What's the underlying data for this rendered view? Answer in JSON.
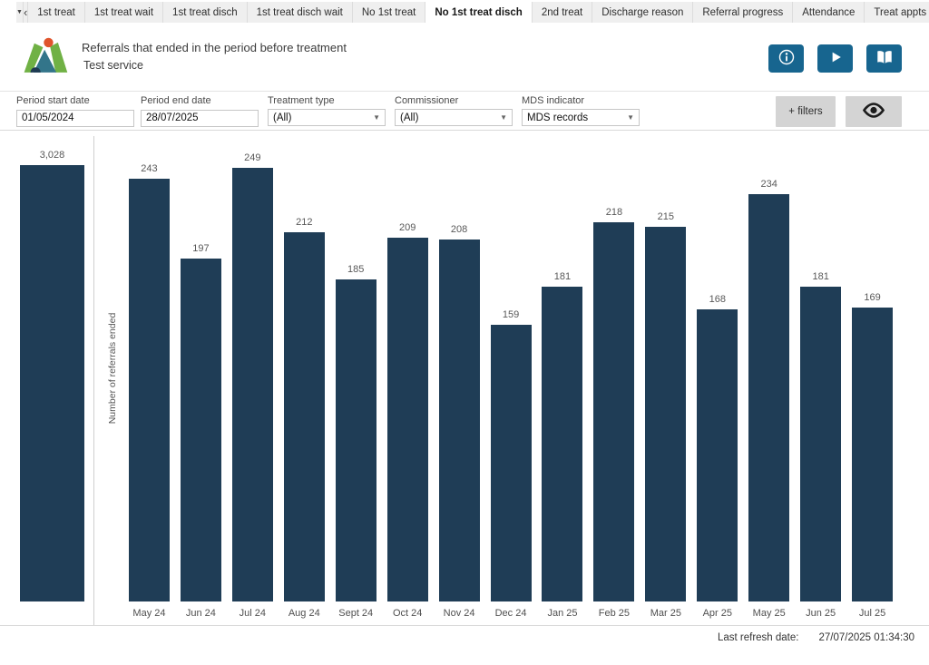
{
  "tab_bar": {
    "dropdown_icon": "▼",
    "back_icon": "‹",
    "forward_icon": "›",
    "tabs": [
      {
        "label": "1st treat",
        "selected": false
      },
      {
        "label": "1st treat wait",
        "selected": false
      },
      {
        "label": "1st treat disch",
        "selected": false
      },
      {
        "label": "1st treat disch wait",
        "selected": false
      },
      {
        "label": "No 1st treat",
        "selected": false
      },
      {
        "label": "No 1st treat disch",
        "selected": true
      },
      {
        "label": "2nd treat",
        "selected": false
      },
      {
        "label": "Discharge reason",
        "selected": false
      },
      {
        "label": "Referral progress",
        "selected": false
      },
      {
        "label": "Attendance",
        "selected": false
      },
      {
        "label": "Treat appts",
        "selected": false
      }
    ]
  },
  "header": {
    "title": "Referrals that ended in the period before treatment",
    "subtitle": "Test service"
  },
  "filters": {
    "period_start": {
      "label": "Period start date",
      "value": "01/05/2024"
    },
    "period_end": {
      "label": "Period end date",
      "value": "28/07/2025"
    },
    "treatment_type": {
      "label": "Treatment type",
      "value": "(All)"
    },
    "commissioner": {
      "label": "Commissioner",
      "value": "(All)"
    },
    "mds_indicator": {
      "label": "MDS indicator",
      "value": "MDS records"
    },
    "add_filters_label": "+ filters",
    "select_caret": "▼"
  },
  "chart_data": {
    "type": "bar",
    "title": "Referrals that ended in the period before treatment",
    "ylabel": "Number of referrals ended",
    "xlabel": "",
    "grid": false,
    "value_labels": true,
    "legend": "none",
    "total": {
      "label": "3,028",
      "value": 3028
    },
    "categories": [
      "May 24",
      "Jun 24",
      "Jul 24",
      "Aug 24",
      "Sept 24",
      "Oct 24",
      "Nov 24",
      "Dec 24",
      "Jan 25",
      "Feb 25",
      "Mar 25",
      "Apr 25",
      "May 25",
      "Jun 25",
      "Jul 25"
    ],
    "values": [
      243,
      197,
      249,
      212,
      185,
      209,
      208,
      159,
      181,
      218,
      215,
      168,
      234,
      181,
      169
    ],
    "ylim": [
      0,
      260
    ],
    "bar_color": "#1f3d56"
  },
  "footer": {
    "refresh_label": "Last refresh date:",
    "refresh_value": "27/07/2025 01:34:30"
  },
  "colors": {
    "accent_button": "#17658f",
    "bar": "#1f3d56",
    "tab_bg": "#efefef",
    "gray_button": "#d4d4d4",
    "logo_green": "#70b145",
    "logo_orange": "#e0542c",
    "logo_teal": "#33758a"
  }
}
